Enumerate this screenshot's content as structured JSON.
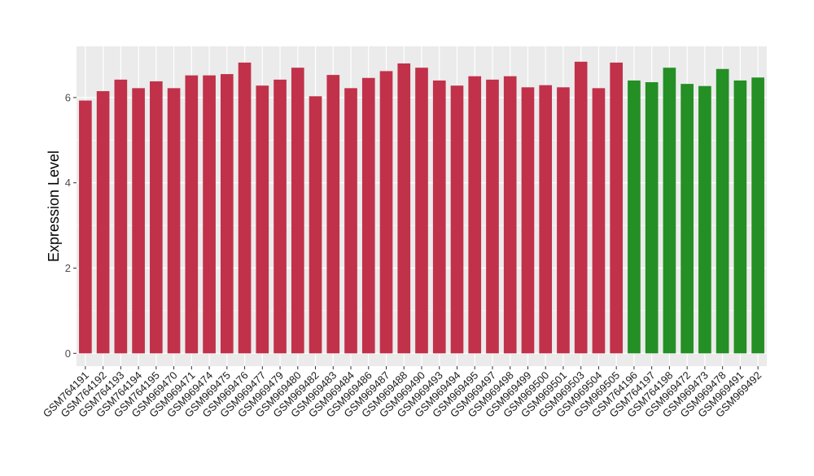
{
  "chart_data": {
    "type": "bar",
    "title": "",
    "xlabel": "",
    "ylabel": "Expression Level",
    "ylim": [
      -0.3,
      7.2
    ],
    "yticks": [
      0,
      2,
      4,
      6
    ],
    "grid": true,
    "legend": "none",
    "colors": {
      "red": "#c1314a",
      "green": "#248f24",
      "panel": "#ebebeb",
      "grid": "#ffffff"
    },
    "categories": [
      "GSM764191",
      "GSM764192",
      "GSM764193",
      "GSM764194",
      "GSM764195",
      "GSM969470",
      "GSM969471",
      "GSM969474",
      "GSM969475",
      "GSM969476",
      "GSM969477",
      "GSM969479",
      "GSM969480",
      "GSM969482",
      "GSM969483",
      "GSM969484",
      "GSM969486",
      "GSM969487",
      "GSM969488",
      "GSM969490",
      "GSM969493",
      "GSM969494",
      "GSM969495",
      "GSM969497",
      "GSM969498",
      "GSM969499",
      "GSM969500",
      "GSM969501",
      "GSM969503",
      "GSM969504",
      "GSM969505",
      "GSM764196",
      "GSM764197",
      "GSM764198",
      "GSM969472",
      "GSM969473",
      "GSM969478",
      "GSM969491",
      "GSM969492"
    ],
    "values": [
      5.93,
      6.15,
      6.42,
      6.22,
      6.38,
      6.22,
      6.52,
      6.52,
      6.55,
      6.82,
      6.28,
      6.42,
      6.7,
      6.03,
      6.53,
      6.22,
      6.46,
      6.62,
      6.8,
      6.7,
      6.4,
      6.28,
      6.5,
      6.42,
      6.5,
      6.24,
      6.29,
      6.24,
      6.84,
      6.22,
      6.82,
      6.4,
      6.36,
      6.7,
      6.32,
      6.27,
      6.67,
      6.4,
      6.47
    ],
    "bar_colors": [
      "red",
      "red",
      "red",
      "red",
      "red",
      "red",
      "red",
      "red",
      "red",
      "red",
      "red",
      "red",
      "red",
      "red",
      "red",
      "red",
      "red",
      "red",
      "red",
      "red",
      "red",
      "red",
      "red",
      "red",
      "red",
      "red",
      "red",
      "red",
      "red",
      "red",
      "red",
      "green",
      "green",
      "green",
      "green",
      "green",
      "green",
      "green",
      "green"
    ]
  }
}
